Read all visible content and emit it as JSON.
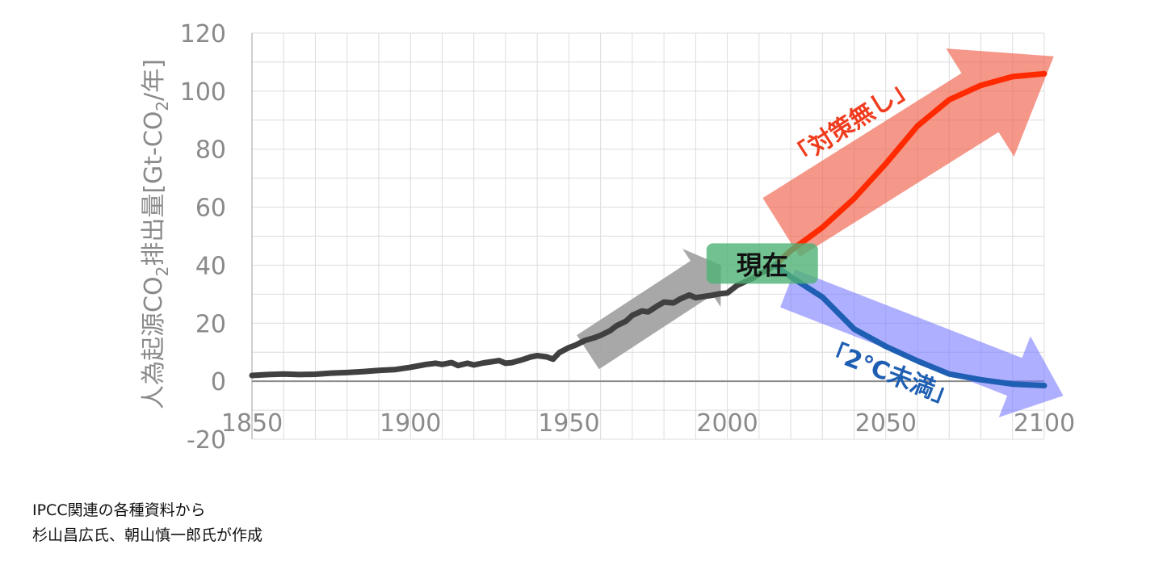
{
  "chart_data": {
    "type": "line",
    "title": "",
    "xlabel": "",
    "ylabel_parts": {
      "pre": "人為起源CO",
      "sub": "2",
      "mid": "排出量[Gt-CO",
      "sub2": "2",
      "post": "/年]"
    },
    "xlim": [
      1850,
      2100
    ],
    "ylim": [
      -20,
      120
    ],
    "x_ticks": [
      "1850",
      "1900",
      "1950",
      "2000",
      "2050",
      "2100"
    ],
    "y_ticks": [
      "120",
      "100",
      "80",
      "60",
      "40",
      "20",
      "0",
      "-20"
    ],
    "grid": true,
    "series": [
      {
        "name": "",
        "color": "#404040",
        "x": [
          1850,
          1855,
          1860,
          1865,
          1870,
          1875,
          1880,
          1885,
          1890,
          1895,
          1900,
          1905,
          1908,
          1910,
          1913,
          1915,
          1918,
          1920,
          1923,
          1925,
          1928,
          1930,
          1932,
          1935,
          1938,
          1940,
          1943,
          1945,
          1947,
          1950,
          1952,
          1955,
          1958,
          1960,
          1963,
          1965,
          1968,
          1970,
          1973,
          1975,
          1978,
          1980,
          1983,
          1985,
          1988,
          1990,
          1993,
          1995,
          1998,
          2000,
          2003,
          2005,
          2008,
          2010,
          2013,
          2015
        ],
        "y": [
          2,
          2.3,
          2.5,
          2.3,
          2.4,
          2.8,
          3,
          3.3,
          3.7,
          4,
          4.8,
          5.8,
          6.2,
          5.8,
          6.4,
          5.4,
          6.2,
          5.6,
          6.3,
          6.6,
          7.1,
          6.2,
          6.4,
          7.3,
          8.4,
          8.8,
          8.4,
          7.6,
          9.9,
          11.6,
          12.4,
          14,
          15,
          15.8,
          17.4,
          19.1,
          20.7,
          22.7,
          24.2,
          23.9,
          26,
          27.3,
          27,
          28.3,
          29.7,
          28.8,
          29.3,
          29.6,
          30.2,
          30.4,
          33,
          34,
          35.5,
          37,
          38.5,
          40
        ]
      },
      {
        "name": "",
        "color": "#ff2a00",
        "x": [
          2015,
          2020,
          2030,
          2040,
          2050,
          2060,
          2070,
          2080,
          2090,
          2100
        ],
        "y": [
          40,
          45,
          53,
          63,
          75,
          88,
          97,
          102,
          105,
          106
        ]
      },
      {
        "name": "",
        "color": "#1f5fb3",
        "x": [
          2015,
          2020,
          2030,
          2040,
          2050,
          2060,
          2070,
          2080,
          2090,
          2100
        ],
        "y": [
          40,
          36,
          29,
          18,
          12,
          7,
          2.5,
          0.5,
          -1,
          -1.5
        ]
      }
    ],
    "trend_arrows": [
      {
        "color": "#9e9e9e",
        "opacity": 0.9,
        "from": [
          1956,
          10
        ],
        "to": [
          1998,
          40
        ],
        "width": 14,
        "head_length": 8,
        "head_width": 24
      },
      {
        "color": "#f0604a",
        "opacity": 0.65,
        "from": [
          2017,
          53
        ],
        "to": [
          2103,
          112
        ],
        "width": 24,
        "head_length": 30,
        "head_width": 44
      },
      {
        "color": "#7a7aff",
        "opacity": 0.6,
        "from": [
          2019,
          32
        ],
        "to": [
          2106,
          -5
        ],
        "width": 14,
        "head_length": 18,
        "head_width": 30
      }
    ],
    "annotations": {
      "current_label": "現在",
      "current_color": "#4fb275",
      "no_policy_label": "「対策無し」",
      "two_degree_label": "「2℃未満」"
    }
  },
  "source_note": {
    "line1": "IPCC関連の各種資料から",
    "line2": "杉山昌広氏、朝山慎一郎氏が作成"
  }
}
